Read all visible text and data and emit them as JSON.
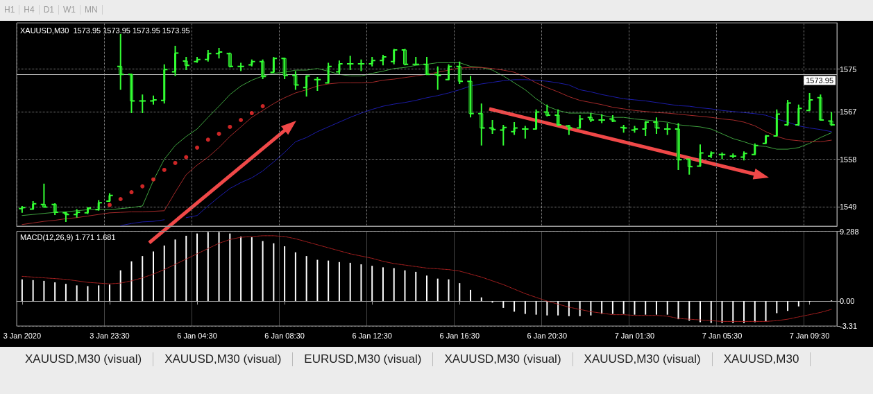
{
  "chart_data": [
    {
      "type": "candlestick",
      "title": "XAUUSD,M30  1573.95 1573.95 1573.95 1573.95",
      "color": "#33ff33",
      "categories": [
        null,
        null,
        null,
        null,
        null,
        null,
        null,
        null,
        null,
        null,
        null,
        null,
        null,
        null,
        null,
        null,
        null,
        null,
        null,
        null,
        null,
        null,
        null,
        null,
        null,
        null,
        null,
        null,
        null,
        null,
        null,
        null,
        null,
        null,
        null,
        null,
        null,
        null,
        null,
        null,
        null,
        null,
        null,
        null,
        null,
        null,
        null,
        null,
        null,
        null,
        null,
        null,
        null,
        null,
        null,
        null,
        null,
        null,
        null,
        null,
        null,
        null,
        null,
        null,
        null,
        null,
        null,
        null,
        null,
        null,
        null,
        null,
        null,
        null,
        null
      ],
      "ohlc": [
        [
          1548.7,
          1549.2,
          1547.9,
          1548.9
        ],
        [
          1548.6,
          1550.1,
          1548.6,
          1549.6
        ],
        [
          1549.5,
          1553.4,
          1549.0,
          1549.0
        ],
        [
          1549.5,
          1549.7,
          1547.5,
          1548.0
        ],
        [
          1547.9,
          1548.1,
          1546.2,
          1547.6
        ],
        [
          1547.6,
          1548.6,
          1547.0,
          1548.0
        ],
        [
          1547.9,
          1549.0,
          1547.7,
          1548.8
        ],
        [
          1548.5,
          1550.3,
          1548.3,
          1549.8
        ],
        [
          1550.1,
          1551.6,
          1550.1,
          1551.2
        ],
        [
          1575.5,
          1581.6,
          1571.1,
          1574.0
        ],
        [
          1574.0,
          1574.0,
          1566.7,
          1569.0
        ],
        [
          1569.0,
          1570.2,
          1566.7,
          1569.0
        ],
        [
          1569.0,
          1570.0,
          1568.3,
          1569.2
        ],
        [
          1569.1,
          1575.9,
          1568.5,
          1574.9
        ],
        [
          1574.5,
          1579.4,
          1573.7,
          1578.0
        ],
        [
          1576.5,
          1577.3,
          1574.8,
          1575.7
        ],
        [
          1576.4,
          1577.3,
          1576.2,
          1576.8
        ],
        [
          1576.8,
          1578.6,
          1576.4,
          1577.9
        ],
        [
          1577.9,
          1579.0,
          1577.0,
          1578.2
        ],
        [
          1577.9,
          1578.1,
          1575.3,
          1575.5
        ],
        [
          1575.5,
          1576.2,
          1574.6,
          1575.5
        ],
        [
          1575.8,
          1576.8,
          1575.5,
          1576.4
        ],
        [
          1576.4,
          1576.8,
          1573.1,
          1573.6
        ],
        [
          1574.4,
          1577.3,
          1574.4,
          1577.0
        ],
        [
          1577.0,
          1577.0,
          1573.1,
          1573.8
        ],
        [
          1573.8,
          1574.6,
          1571.1,
          1572.0
        ],
        [
          1571.5,
          1573.7,
          1569.8,
          1573.7
        ],
        [
          1573.0,
          1573.5,
          1570.9,
          1573.0
        ],
        [
          1572.4,
          1576.2,
          1572.4,
          1575.5
        ],
        [
          1574.5,
          1576.6,
          1574.0,
          1576.0
        ],
        [
          1576.0,
          1577.5,
          1574.8,
          1576.0
        ],
        [
          1576.0,
          1576.8,
          1574.6,
          1576.0
        ],
        [
          1576.0,
          1577.3,
          1575.5,
          1576.6
        ],
        [
          1576.6,
          1577.7,
          1575.7,
          1577.3
        ],
        [
          1576.4,
          1578.8,
          1575.9,
          1578.6
        ],
        [
          1578.6,
          1578.8,
          1575.7,
          1575.9
        ],
        [
          1575.9,
          1577.3,
          1575.9,
          1575.9
        ],
        [
          1575.9,
          1577.3,
          1574.0,
          1574.0
        ],
        [
          1574.0,
          1575.5,
          1571.1,
          1573.8
        ],
        [
          1573.0,
          1575.9,
          1572.9,
          1575.5
        ],
        [
          1575.5,
          1576.4,
          1572.2,
          1572.7
        ],
        [
          1572.7,
          1573.7,
          1565.9,
          1566.6
        ],
        [
          1566.6,
          1568.5,
          1560.6,
          1563.9
        ],
        [
          1563.9,
          1565.4,
          1562.8,
          1563.6
        ],
        [
          1563.5,
          1564.5,
          1560.6,
          1564.0
        ],
        [
          1563.2,
          1565.0,
          1562.6,
          1563.9
        ],
        [
          1563.7,
          1564.3,
          1561.9,
          1563.7
        ],
        [
          1563.7,
          1567.4,
          1563.7,
          1566.9
        ],
        [
          1566.9,
          1568.3,
          1566.1,
          1566.3
        ],
        [
          1566.3,
          1567.4,
          1564.3,
          1564.5
        ],
        [
          1564.3,
          1564.5,
          1562.6,
          1563.9
        ],
        [
          1563.9,
          1566.3,
          1563.9,
          1565.6
        ],
        [
          1565.9,
          1566.7,
          1565.0,
          1565.4
        ],
        [
          1565.4,
          1566.5,
          1564.8,
          1565.4
        ],
        [
          1565.6,
          1566.3,
          1565.0,
          1565.2
        ],
        [
          1564.0,
          1564.5,
          1563.0,
          1563.9
        ],
        [
          1563.5,
          1564.3,
          1563.0,
          1563.7
        ],
        [
          1563.7,
          1565.2,
          1562.4,
          1565.0
        ],
        [
          1565.0,
          1565.9,
          1562.8,
          1563.9
        ],
        [
          1563.7,
          1564.8,
          1562.6,
          1563.7
        ],
        [
          1563.7,
          1564.8,
          1556.0,
          1557.9
        ],
        [
          1558.0,
          1558.0,
          1555.1,
          1556.6
        ],
        [
          1556.7,
          1560.8,
          1556.7,
          1559.2
        ],
        [
          1558.6,
          1559.5,
          1558.2,
          1559.2
        ],
        [
          1558.9,
          1559.3,
          1558.0,
          1558.9
        ],
        [
          1558.6,
          1559.1,
          1558.2,
          1558.6
        ],
        [
          1558.4,
          1559.5,
          1557.8,
          1559.1
        ],
        [
          1558.9,
          1561.0,
          1558.9,
          1560.6
        ],
        [
          1561.0,
          1562.6,
          1561.0,
          1562.4
        ],
        [
          1562.4,
          1567.4,
          1562.4,
          1566.5
        ],
        [
          1564.5,
          1569.2,
          1564.3,
          1568.6
        ],
        [
          1564.5,
          1568.3,
          1564.3,
          1567.6
        ],
        [
          1567.2,
          1570.5,
          1567.2,
          1569.2
        ],
        [
          1569.6,
          1570.2,
          1565.4,
          1565.4
        ],
        [
          1565.2,
          1566.9,
          1564.3,
          1564.5
        ]
      ],
      "series": [
        {
          "type": "line",
          "color": "#3fa33f",
          "values": [
            1547.4,
            1547.6,
            1547.8,
            1548.0,
            1548.1,
            1548.3,
            1548.5,
            1548.6,
            1548.5,
            1548.7,
            1548.9,
            1549.2,
            1554.0,
            1558.0,
            1560.6,
            1562.3,
            1563.7,
            1565.9,
            1568.0,
            1570.2,
            1571.8,
            1572.9,
            1573.7,
            1574.2,
            1574.4,
            1574.8,
            1574.8,
            1575.1,
            1574.6,
            1574.0,
            1573.7,
            1573.7,
            1574.2,
            1574.6,
            1575.1,
            1575.3,
            1575.7,
            1575.9,
            1576.2,
            1576.2,
            1576.2,
            1575.5,
            1575.3,
            1574.8,
            1573.7,
            1572.4,
            1571.1,
            1569.4,
            1568.0,
            1567.2,
            1566.7,
            1566.7,
            1566.7,
            1566.3,
            1565.9,
            1565.9,
            1565.6,
            1565.4,
            1565.2,
            1565.0,
            1564.5,
            1564.3,
            1564.1,
            1563.7,
            1562.8,
            1561.9,
            1561.3,
            1560.6,
            1560.4,
            1559.9,
            1559.9,
            1560.2,
            1561.0,
            1562.1,
            1563.0
          ]
        },
        {
          "type": "line",
          "color": "#a52a2a",
          "values": [
            1545.7,
            1546.0,
            1546.3,
            1546.5,
            1546.8,
            1547.0,
            1547.3,
            1547.6,
            1547.9,
            1548.0,
            1548.1,
            1548.1,
            1548.2,
            1548.3,
            1551.8,
            1555.1,
            1556.9,
            1558.4,
            1560.2,
            1562.3,
            1564.1,
            1565.9,
            1567.2,
            1568.5,
            1569.6,
            1570.5,
            1571.1,
            1571.8,
            1572.2,
            1572.4,
            1572.4,
            1572.4,
            1572.5,
            1572.9,
            1573.1,
            1573.4,
            1573.7,
            1574.0,
            1574.4,
            1574.8,
            1575.2,
            1575.3,
            1575.3,
            1575.1,
            1574.8,
            1574.4,
            1573.5,
            1572.4,
            1571.5,
            1570.7,
            1569.8,
            1569.1,
            1568.7,
            1568.3,
            1567.8,
            1567.5,
            1567.2,
            1567.0,
            1566.8,
            1566.7,
            1566.5,
            1566.3,
            1566.1,
            1565.9,
            1565.6,
            1565.4,
            1565.0,
            1564.3,
            1563.2,
            1562.3,
            1561.7,
            1561.5,
            1561.3,
            1561.3,
            1561.6
          ]
        },
        {
          "type": "line",
          "color": "#1c1ca8",
          "values": [
            null,
            null,
            null,
            null,
            null,
            null,
            null,
            null,
            null,
            1545.5,
            1545.9,
            1546.2,
            1546.3,
            1546.6,
            null,
            1547.0,
            1547.4,
            1549.2,
            1550.9,
            1552.5,
            1553.6,
            1554.5,
            1555.8,
            1557.5,
            1559.3,
            1561.3,
            1562.1,
            1563.2,
            1564.1,
            1565.0,
            1565.9,
            1566.7,
            1567.4,
            1568.0,
            1568.4,
            1568.7,
            1569.1,
            1569.6,
            1570.0,
            1570.5,
            1571.1,
            1571.8,
            1572.2,
            1572.5,
            1572.8,
            1573.0,
            1573.0,
            1572.9,
            1572.7,
            1572.4,
            1572.0,
            1571.1,
            1570.7,
            1570.2,
            1569.8,
            1569.4,
            1569.2,
            1569.0,
            1568.7,
            1568.4,
            1568.1,
            1568.0,
            1567.7,
            1567.5,
            1567.2,
            1567.0,
            1566.8,
            1566.6,
            1566.3,
            1565.6,
            1565.0,
            1564.3,
            1563.9,
            1563.6,
            1563.2
          ]
        },
        {
          "type": "scatter",
          "color": "#ff3030",
          "values": [
            null,
            null,
            null,
            null,
            null,
            null,
            null,
            null,
            1549.4,
            1550.5,
            1551.8,
            1552.9,
            1554.2,
            1556.0,
            1557.3,
            1558.4,
            1560.2,
            1561.7,
            1562.8,
            1564.1,
            1565.4,
            1566.7,
            1568.0,
            null,
            null,
            null,
            null,
            null,
            null,
            null,
            null,
            null,
            null,
            null,
            null,
            null,
            null,
            null,
            null,
            null,
            null,
            null,
            null,
            null,
            null,
            null,
            null,
            null,
            null,
            null,
            null,
            null,
            null,
            null,
            null,
            null,
            null,
            null,
            null,
            null,
            null,
            null,
            null,
            null,
            null,
            null,
            null,
            null,
            null,
            null,
            null,
            null,
            null,
            null,
            null
          ]
        }
      ],
      "ylim": [
        1545.4,
        1583.7
      ],
      "yticks": [
        1575,
        1567,
        1558,
        1549
      ],
      "ref_lines": [
        {
          "axis": "y",
          "value": 1573.95,
          "label": "1573.95",
          "color": "#bbbbbb"
        }
      ],
      "grid": true,
      "tick_labels": "y",
      "annotations": [
        "H1",
        "H4",
        "D1",
        "W1",
        "MN"
      ]
    },
    {
      "type": "bar",
      "title": "MACD(12,26,9) 1.771 1.681",
      "categories": [
        "3 Jan 2020",
        null,
        null,
        null,
        null,
        null,
        null,
        null,
        "3 Jan 23:30",
        null,
        null,
        null,
        null,
        null,
        null,
        null,
        "6 Jan 04:30",
        null,
        null,
        null,
        null,
        null,
        null,
        null,
        "6 Jan 08:30",
        null,
        null,
        null,
        null,
        null,
        null,
        null,
        "6 Jan 12:30",
        null,
        null,
        null,
        null,
        null,
        null,
        null,
        "6 Jan 16:30",
        null,
        null,
        null,
        null,
        null,
        null,
        null,
        "6 Jan 20:30",
        null,
        null,
        null,
        null,
        null,
        null,
        null,
        "7 Jan 01:30",
        null,
        null,
        null,
        null,
        null,
        null,
        null,
        "7 Jan 05:30",
        null,
        null,
        null,
        null,
        null,
        null,
        null,
        "7 Jan 09:30",
        null,
        null
      ],
      "series": [
        {
          "type": "bar",
          "color": "#ffffff",
          "values": [
            2.9,
            2.8,
            2.7,
            2.5,
            2.3,
            2.1,
            2.0,
            2.1,
            2.2,
            4.1,
            5.3,
            6.0,
            6.6,
            7.4,
            8.2,
            8.7,
            9.0,
            9.2,
            9.2,
            9.0,
            8.6,
            8.5,
            8.0,
            7.7,
            7.3,
            6.5,
            6.0,
            5.5,
            5.4,
            5.2,
            5.1,
            4.9,
            4.7,
            4.5,
            4.4,
            4.1,
            3.9,
            3.4,
            3.0,
            2.9,
            2.4,
            1.5,
            0.5,
            -0.2,
            -0.9,
            -1.4,
            -1.7,
            -1.8,
            -1.9,
            -1.9,
            -2.0,
            -2.0,
            -1.9,
            -1.7,
            -1.7,
            -1.7,
            -1.8,
            -1.8,
            -1.8,
            -1.8,
            -2.4,
            -2.6,
            -2.8,
            -2.9,
            -2.9,
            -2.9,
            -2.9,
            -2.8,
            -2.7,
            -1.6,
            -1.3,
            -0.7,
            -0.1,
            0,
            0.1
          ]
        },
        {
          "type": "line",
          "color": "#b22222",
          "line_style": "dotted",
          "values": [
            3.3,
            3.2,
            3.1,
            3.0,
            2.9,
            2.7,
            2.5,
            2.4,
            2.3,
            2.4,
            2.7,
            3.1,
            3.6,
            4.2,
            4.9,
            5.6,
            6.3,
            7.0,
            7.7,
            8.2,
            8.5,
            8.6,
            8.7,
            8.7,
            8.6,
            8.3,
            7.9,
            7.5,
            7.1,
            6.7,
            6.3,
            6.0,
            5.7,
            5.3,
            5.0,
            4.8,
            4.6,
            4.4,
            4.3,
            4.2,
            4.0,
            3.6,
            3.2,
            2.7,
            2.2,
            1.6,
            1.0,
            0.5,
            0.0,
            -0.4,
            -0.8,
            -1.1,
            -1.4,
            -1.6,
            -1.8,
            -1.8,
            -1.9,
            -1.9,
            -1.9,
            -2.0,
            -2.3,
            -2.4,
            -2.5,
            -2.6,
            -2.7,
            -2.7,
            -2.7,
            -2.7,
            -2.7,
            -2.6,
            -2.4,
            -2.1,
            -1.8,
            -1.5,
            -1.1
          ]
        }
      ],
      "ylim": [
        -3.31,
        9.288
      ],
      "yticks": [
        {
          "value": 9.288,
          "label": "9.288"
        },
        {
          "value": 0,
          "label": "0.00"
        },
        {
          "value": -3.31,
          "label": "-3.31"
        }
      ],
      "grid": true,
      "annotations": [
        "XAUUSD,M30 (visual)",
        "XAUUSD,M30 (visual)",
        "EURUSD,M30 (visual)",
        "XAUUSD,M30 (visual)",
        "XAUUSD,M30 (visual)",
        "XAUUSD,M30"
      ]
    }
  ]
}
